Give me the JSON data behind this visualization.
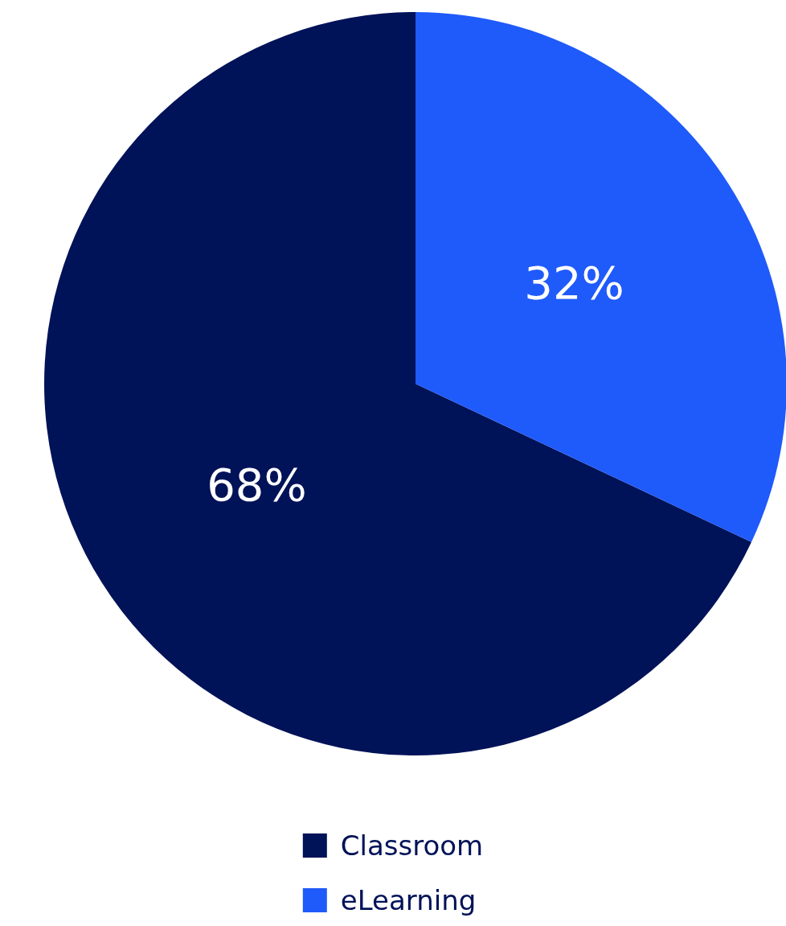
{
  "chart_data": {
    "type": "pie",
    "categories": [
      "Classroom",
      "eLearning"
    ],
    "values": [
      68,
      32
    ],
    "colors": [
      "#001258",
      "#1f5afa"
    ],
    "value_labels": [
      "68%",
      "32%"
    ],
    "legend": "bottom"
  }
}
